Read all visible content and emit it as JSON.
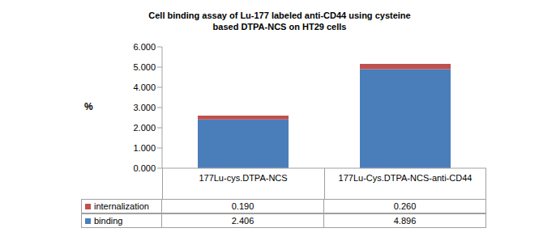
{
  "chart_data": {
    "type": "bar",
    "title": "Cell binding assay of Lu-177 labeled anti-CD44 using cysteine based DTPA-NCS on HT29 cells",
    "y_label": "%",
    "categories": [
      "177Lu-cys.DTPA-NCS",
      "177Lu-Cys.DTPA-NCS-anti-CD44"
    ],
    "series": [
      {
        "name": "binding",
        "color": "#4a7ebb",
        "values": [
          2.406,
          4.896
        ],
        "value_labels": [
          "2.406",
          "4.896"
        ]
      },
      {
        "name": "internalization",
        "color": "#c0504d",
        "values": [
          0.19,
          0.26
        ],
        "value_labels": [
          "0.190",
          "0.260"
        ]
      }
    ],
    "stacked": true,
    "ylim": [
      0,
      6
    ],
    "yticks": [
      {
        "value": 0,
        "label": "0.000"
      },
      {
        "value": 1,
        "label": "1.000"
      },
      {
        "value": 2,
        "label": "2.000"
      },
      {
        "value": 3,
        "label": "3.000"
      },
      {
        "value": 4,
        "label": "4.000"
      },
      {
        "value": 5,
        "label": "5.000"
      },
      {
        "value": 6,
        "label": "6.000"
      }
    ],
    "grid": false
  }
}
